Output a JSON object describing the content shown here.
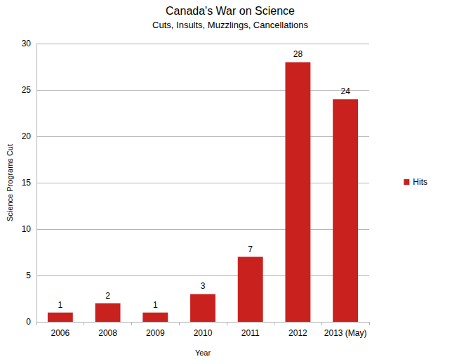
{
  "chart_data": {
    "type": "bar",
    "title": "Canada's War on Science",
    "subtitle": "Cuts, Insults, Muzzlings, Cancellations",
    "x_label": "Year",
    "y_label": "Science Programs Cut",
    "categories": [
      "2006",
      "2008",
      "2009",
      "2010",
      "2011",
      "2012",
      "2013 (May)"
    ],
    "series": [
      {
        "name": "Hits",
        "color": "#c9211e",
        "values": [
          1,
          2,
          1,
          3,
          7,
          28,
          24
        ]
      }
    ],
    "ylim": [
      0,
      30
    ],
    "yticks": [
      0,
      5,
      10,
      15,
      20,
      25,
      30
    ],
    "grid": true,
    "legend": "right",
    "data_labels": true
  }
}
